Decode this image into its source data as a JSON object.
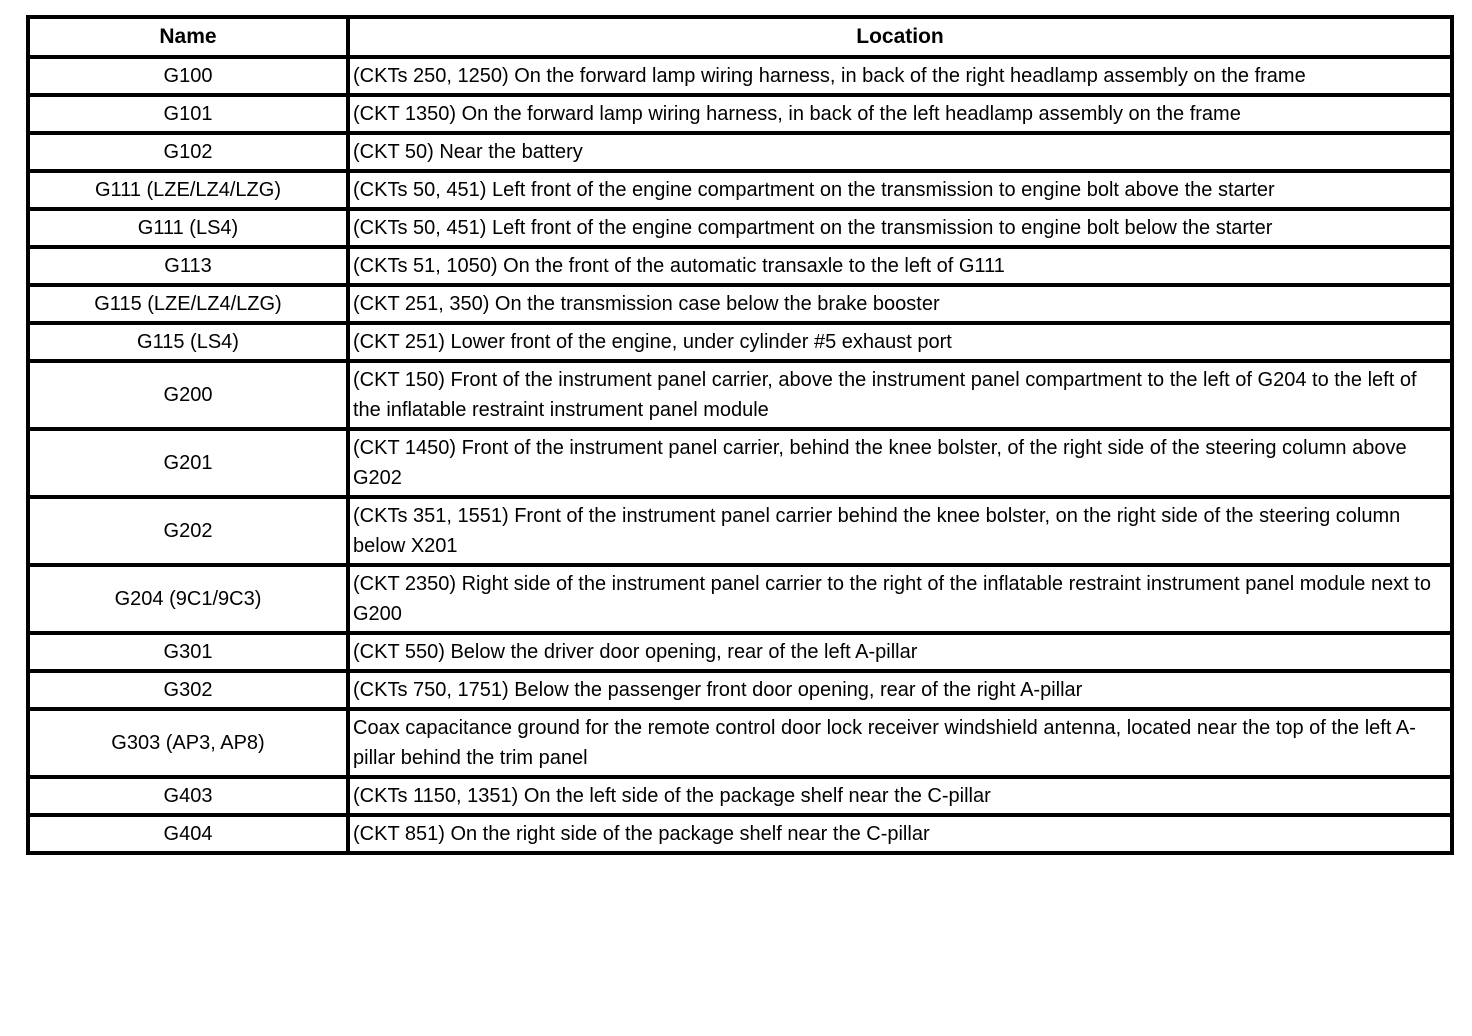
{
  "colors": {
    "border": "#000000",
    "background": "#ffffff",
    "text": "#000000"
  },
  "table": {
    "headers": {
      "name": "Name",
      "location": "Location"
    },
    "rows": [
      {
        "name": "G100",
        "location": "(CKTs 250, 1250) On the forward lamp wiring harness, in back of the right headlamp assembly on the frame"
      },
      {
        "name": "G101",
        "location": "(CKT 1350) On the forward lamp wiring harness, in back of the left headlamp assembly on the frame"
      },
      {
        "name": "G102",
        "location": "(CKT 50) Near the battery"
      },
      {
        "name": "G111 (LZE/LZ4/LZG)",
        "location": "(CKTs 50, 451) Left front of the engine compartment on the transmission to engine bolt above the starter"
      },
      {
        "name": "G111 (LS4)",
        "location": "(CKTs 50, 451) Left front of the engine compartment on the transmission to engine bolt below the starter"
      },
      {
        "name": "G113",
        "location": "(CKTs 51, 1050) On the front of the automatic transaxle to the left of G111"
      },
      {
        "name": "G115 (LZE/LZ4/LZG)",
        "location": "(CKT 251, 350) On the transmission case below the brake booster"
      },
      {
        "name": "G115 (LS4)",
        "location": "(CKT 251) Lower front of the engine, under cylinder #5 exhaust port"
      },
      {
        "name": "G200",
        "location": "(CKT 150) Front of the instrument panel carrier, above the instrument panel compartment to the left of G204 to the left of the inflatable restraint instrument panel module"
      },
      {
        "name": "G201",
        "location": "(CKT 1450) Front of the instrument panel carrier, behind the knee bolster, of the right side of the steering column above G202"
      },
      {
        "name": "G202",
        "location": "(CKTs 351, 1551) Front of the instrument panel carrier behind the knee bolster, on the right side of the steering column below X201"
      },
      {
        "name": "G204 (9C1/9C3)",
        "location": "(CKT 2350) Right side of the instrument panel carrier to the right of the inflatable restraint instrument panel module next to G200"
      },
      {
        "name": "G301",
        "location": "(CKT 550) Below the driver door opening, rear of the left A-pillar"
      },
      {
        "name": "G302",
        "location": "(CKTs 750, 1751) Below the passenger front door opening, rear of the right A-pillar"
      },
      {
        "name": "G303 (AP3, AP8)",
        "location": "Coax capacitance ground for the remote control door lock receiver windshield antenna, located near the top of the left A-pillar behind the trim panel"
      },
      {
        "name": "G403",
        "location": "(CKTs 1150, 1351) On the left side of the package shelf near the C-pillar"
      },
      {
        "name": "G404",
        "location": "(CKT 851) On the right side of the package shelf near the C-pillar"
      }
    ]
  }
}
